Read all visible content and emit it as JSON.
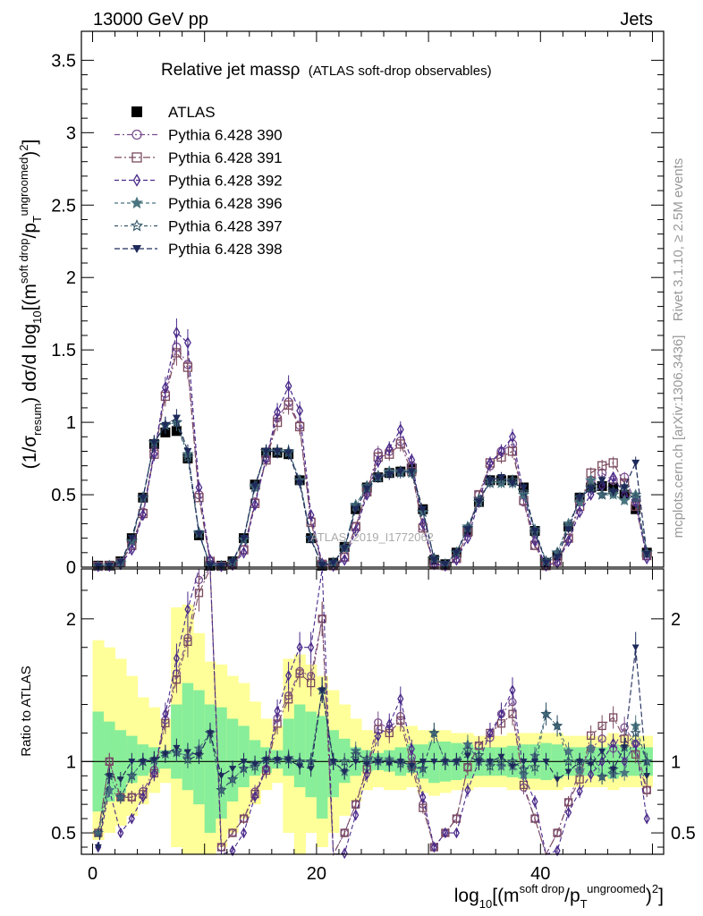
{
  "header": {
    "energy_label": "13000 GeV pp",
    "category_label": "Jets"
  },
  "side_labels": {
    "rivet": "Rivet 3.1.10, ≥ 2.5M events",
    "mcplots": "mcplots.cern.ch [arXiv:1306.3436]"
  },
  "chart_data": {
    "type": "line",
    "title": "Relative jet massρ",
    "subtitle": "(ATLAS soft-drop observables)",
    "watermark": "ATLAS_2019_I1772062",
    "xlabel": "log10[(m^soft drop / pT^ungroomed)^2]",
    "xlabel_parts": {
      "pre": "log",
      "sub1": "10",
      "mid": "[(m",
      "sup1": "soft drop",
      "mid2": "/p",
      "sub2": "T",
      "sup2": "ungroomed",
      "post": ")",
      "sup3": "2",
      "end": "]"
    },
    "ylabel_parts": {
      "pre": "(1/σ",
      "sub1": "resum",
      "mid": ") dσ/d log",
      "sub2": "10",
      "mid2": "[(m",
      "sup1": "soft drop",
      "mid3": "/p",
      "sub3": "T",
      "sup2": "ungroomed",
      "post": ")",
      "sup3": "2",
      "end": "]"
    },
    "ratio_ylabel": "Ratio to ATLAS",
    "xlim": [
      -1,
      51
    ],
    "ylim": [
      0,
      3.7
    ],
    "ratio_ylim": [
      0.35,
      2.35
    ],
    "xticks": [
      0,
      20,
      40
    ],
    "yticks": [
      0.5,
      1,
      1.5,
      2,
      2.5,
      3,
      3.5
    ],
    "ratio_yticks": [
      0.5,
      1,
      2
    ],
    "legend_position": "top-left",
    "series": [
      {
        "name": "ATLAS",
        "color": "#000000",
        "marker": "filled-square",
        "x": [
          0.5,
          1.5,
          2.5,
          3.5,
          4.5,
          5.5,
          6.5,
          7.5,
          8.5,
          9.5,
          10.5,
          11.5,
          12.5,
          13.5,
          14.5,
          15.5,
          16.5,
          17.5,
          18.5,
          19.5,
          20.5,
          21.5,
          22.5,
          23.5,
          24.5,
          25.5,
          26.5,
          27.5,
          28.5,
          29.5,
          30.5,
          31.5,
          32.5,
          33.5,
          34.5,
          35.5,
          36.5,
          37.5,
          38.5,
          39.5,
          40.5,
          41.5,
          42.5,
          43.5,
          44.5,
          45.5,
          46.5,
          47.5,
          48.5,
          49.5
        ],
        "y": [
          0.01,
          0.01,
          0.04,
          0.2,
          0.48,
          0.85,
          0.93,
          0.94,
          0.75,
          0.22,
          0.01,
          0.01,
          0.04,
          0.2,
          0.57,
          0.79,
          0.79,
          0.78,
          0.6,
          0.2,
          0.01,
          0.03,
          0.14,
          0.4,
          0.55,
          0.62,
          0.65,
          0.66,
          0.68,
          0.4,
          0.05,
          0.02,
          0.1,
          0.25,
          0.45,
          0.6,
          0.6,
          0.6,
          0.55,
          0.25,
          0.03,
          0.08,
          0.28,
          0.48,
          0.55,
          0.56,
          0.55,
          0.5,
          0.4,
          0.1
        ]
      },
      {
        "name": "Pythia 6.428 390",
        "color": "#7a4e8e",
        "marker": "open-circle",
        "x": [
          0.5,
          1.5,
          2.5,
          3.5,
          4.5,
          5.5,
          6.5,
          7.5,
          8.5,
          9.5,
          10.5,
          11.5,
          12.5,
          13.5,
          14.5,
          15.5,
          16.5,
          17.5,
          18.5,
          19.5,
          20.5,
          21.5,
          22.5,
          23.5,
          24.5,
          25.5,
          26.5,
          27.5,
          28.5,
          29.5,
          30.5,
          31.5,
          32.5,
          33.5,
          34.5,
          35.5,
          36.5,
          37.5,
          38.5,
          39.5,
          40.5,
          41.5,
          42.5,
          43.5,
          44.5,
          45.5,
          46.5,
          47.5,
          48.5,
          49.5
        ],
        "y": [
          0.005,
          0.01,
          0.03,
          0.15,
          0.38,
          0.8,
          1.2,
          1.52,
          1.4,
          0.5,
          0.04,
          0.004,
          0.02,
          0.12,
          0.45,
          0.75,
          1.03,
          1.14,
          0.98,
          0.32,
          0.02,
          0.01,
          0.07,
          0.28,
          0.53,
          0.79,
          0.8,
          0.87,
          0.7,
          0.28,
          0.02,
          0.01,
          0.06,
          0.24,
          0.5,
          0.7,
          0.8,
          0.85,
          0.45,
          0.15,
          0.01,
          0.04,
          0.2,
          0.45,
          0.6,
          0.65,
          0.6,
          0.62,
          0.45,
          0.08
        ]
      },
      {
        "name": "Pythia 6.428 391",
        "color": "#7b4a5e",
        "marker": "open-square",
        "x": [
          0.5,
          1.5,
          2.5,
          3.5,
          4.5,
          5.5,
          6.5,
          7.5,
          8.5,
          9.5,
          10.5,
          11.5,
          12.5,
          13.5,
          14.5,
          15.5,
          16.5,
          17.5,
          18.5,
          19.5,
          20.5,
          21.5,
          22.5,
          23.5,
          24.5,
          25.5,
          26.5,
          27.5,
          28.5,
          29.5,
          30.5,
          31.5,
          32.5,
          33.5,
          34.5,
          35.5,
          36.5,
          37.5,
          38.5,
          39.5,
          40.5,
          41.5,
          42.5,
          43.5,
          44.5,
          45.5,
          46.5,
          47.5,
          48.5,
          49.5
        ],
        "y": [
          0.005,
          0.01,
          0.03,
          0.15,
          0.37,
          0.78,
          1.18,
          1.48,
          1.38,
          0.48,
          0.04,
          0.004,
          0.02,
          0.12,
          0.44,
          0.74,
          1.0,
          1.12,
          0.97,
          0.31,
          0.02,
          0.01,
          0.07,
          0.28,
          0.52,
          0.76,
          0.78,
          0.85,
          0.66,
          0.27,
          0.02,
          0.01,
          0.06,
          0.24,
          0.5,
          0.72,
          0.76,
          0.8,
          0.46,
          0.15,
          0.01,
          0.04,
          0.2,
          0.42,
          0.65,
          0.7,
          0.72,
          0.58,
          0.42,
          0.08
        ]
      },
      {
        "name": "Pythia 6.428 392",
        "color": "#4a2a8a",
        "marker": "open-diamond",
        "x": [
          0.5,
          1.5,
          2.5,
          3.5,
          4.5,
          5.5,
          6.5,
          7.5,
          8.5,
          9.5,
          10.5,
          11.5,
          12.5,
          13.5,
          14.5,
          15.5,
          16.5,
          17.5,
          18.5,
          19.5,
          20.5,
          21.5,
          22.5,
          23.5,
          24.5,
          25.5,
          26.5,
          27.5,
          28.5,
          29.5,
          30.5,
          31.5,
          32.5,
          33.5,
          34.5,
          35.5,
          36.5,
          37.5,
          38.5,
          39.5,
          40.5,
          41.5,
          42.5,
          43.5,
          44.5,
          45.5,
          46.5,
          47.5,
          48.5,
          49.5
        ],
        "y": [
          0.004,
          0.008,
          0.02,
          0.12,
          0.36,
          0.78,
          1.24,
          1.62,
          1.55,
          0.55,
          0.05,
          0.003,
          0.015,
          0.1,
          0.43,
          0.75,
          1.07,
          1.25,
          1.08,
          0.36,
          0.025,
          0.008,
          0.05,
          0.25,
          0.5,
          0.73,
          0.82,
          0.95,
          0.74,
          0.3,
          0.02,
          0.01,
          0.05,
          0.2,
          0.45,
          0.72,
          0.8,
          0.9,
          0.5,
          0.18,
          0.01,
          0.03,
          0.18,
          0.38,
          0.5,
          0.56,
          0.62,
          0.5,
          0.45,
          0.06
        ]
      },
      {
        "name": "Pythia 6.428 396",
        "color": "#4a7580",
        "marker": "filled-star",
        "x": [
          0.5,
          1.5,
          2.5,
          3.5,
          4.5,
          5.5,
          6.5,
          7.5,
          8.5,
          9.5,
          10.5,
          11.5,
          12.5,
          13.5,
          14.5,
          15.5,
          16.5,
          17.5,
          18.5,
          19.5,
          20.5,
          21.5,
          22.5,
          23.5,
          24.5,
          25.5,
          26.5,
          27.5,
          28.5,
          29.5,
          30.5,
          31.5,
          32.5,
          33.5,
          34.5,
          35.5,
          36.5,
          37.5,
          38.5,
          39.5,
          40.5,
          41.5,
          42.5,
          43.5,
          44.5,
          45.5,
          46.5,
          47.5,
          48.5,
          49.5
        ],
        "y": [
          0.005,
          0.008,
          0.03,
          0.18,
          0.48,
          0.86,
          0.98,
          1.0,
          0.78,
          0.24,
          0.012,
          0.008,
          0.035,
          0.19,
          0.56,
          0.8,
          0.8,
          0.8,
          0.6,
          0.2,
          0.015,
          0.03,
          0.13,
          0.43,
          0.55,
          0.62,
          0.66,
          0.66,
          0.66,
          0.38,
          0.06,
          0.02,
          0.1,
          0.28,
          0.45,
          0.6,
          0.58,
          0.58,
          0.5,
          0.26,
          0.04,
          0.1,
          0.3,
          0.45,
          0.6,
          0.5,
          0.5,
          0.46,
          0.5,
          0.1
        ]
      },
      {
        "name": "Pythia 6.428 397",
        "color": "#35576a",
        "marker": "open-star",
        "x": [
          0.5,
          1.5,
          2.5,
          3.5,
          4.5,
          5.5,
          6.5,
          7.5,
          8.5,
          9.5,
          10.5,
          11.5,
          12.5,
          13.5,
          14.5,
          15.5,
          16.5,
          17.5,
          18.5,
          19.5,
          20.5,
          21.5,
          22.5,
          23.5,
          24.5,
          25.5,
          26.5,
          27.5,
          28.5,
          29.5,
          30.5,
          31.5,
          32.5,
          33.5,
          34.5,
          35.5,
          36.5,
          37.5,
          38.5,
          39.5,
          40.5,
          41.5,
          42.5,
          43.5,
          44.5,
          45.5,
          46.5,
          47.5,
          48.5,
          49.5
        ],
        "y": [
          0.005,
          0.009,
          0.03,
          0.18,
          0.48,
          0.86,
          0.98,
          1.0,
          0.76,
          0.23,
          0.012,
          0.008,
          0.035,
          0.19,
          0.55,
          0.8,
          0.8,
          0.79,
          0.6,
          0.2,
          0.015,
          0.03,
          0.14,
          0.42,
          0.56,
          0.63,
          0.65,
          0.65,
          0.65,
          0.38,
          0.06,
          0.02,
          0.1,
          0.27,
          0.47,
          0.58,
          0.6,
          0.6,
          0.52,
          0.24,
          0.04,
          0.1,
          0.28,
          0.48,
          0.55,
          0.5,
          0.52,
          0.55,
          0.48,
          0.1
        ]
      },
      {
        "name": "Pythia 6.428 398",
        "color": "#1e2a5a",
        "marker": "filled-triangle-down",
        "x": [
          0.5,
          1.5,
          2.5,
          3.5,
          4.5,
          5.5,
          6.5,
          7.5,
          8.5,
          9.5,
          10.5,
          11.5,
          12.5,
          13.5,
          14.5,
          15.5,
          16.5,
          17.5,
          18.5,
          19.5,
          20.5,
          21.5,
          22.5,
          23.5,
          24.5,
          25.5,
          26.5,
          27.5,
          28.5,
          29.5,
          30.5,
          31.5,
          32.5,
          33.5,
          34.5,
          35.5,
          36.5,
          37.5,
          38.5,
          39.5,
          40.5,
          41.5,
          42.5,
          43.5,
          44.5,
          45.5,
          46.5,
          47.5,
          48.5,
          49.5
        ],
        "y": [
          0.004,
          0.009,
          0.035,
          0.2,
          0.48,
          0.86,
          0.98,
          1.03,
          0.8,
          0.23,
          0.012,
          0.009,
          0.038,
          0.2,
          0.56,
          0.8,
          0.8,
          0.79,
          0.58,
          0.19,
          0.015,
          0.03,
          0.13,
          0.4,
          0.54,
          0.62,
          0.64,
          0.66,
          0.66,
          0.4,
          0.05,
          0.02,
          0.1,
          0.26,
          0.45,
          0.6,
          0.62,
          0.58,
          0.55,
          0.25,
          0.03,
          0.07,
          0.26,
          0.48,
          0.54,
          0.6,
          0.52,
          0.55,
          0.72,
          0.09
        ]
      }
    ],
    "uncertainty_bands": {
      "x_edges": [
        0,
        1,
        2,
        3,
        4,
        5,
        6,
        7,
        8,
        9,
        10,
        11,
        12,
        13,
        14,
        15,
        16,
        17,
        18,
        19,
        20,
        21,
        22,
        23,
        24,
        25,
        26,
        27,
        28,
        29,
        30,
        31,
        32,
        33,
        34,
        35,
        36,
        37,
        38,
        39,
        40,
        41,
        42,
        43,
        44,
        45,
        46,
        47,
        48,
        49,
        50
      ],
      "inner_lo": [
        0.65,
        0.72,
        0.78,
        0.85,
        0.9,
        0.92,
        0.95,
        0.88,
        0.8,
        0.7,
        0.5,
        0.6,
        0.72,
        0.82,
        0.9,
        0.92,
        0.95,
        0.9,
        0.82,
        0.75,
        0.6,
        0.75,
        0.85,
        0.9,
        0.93,
        0.94,
        0.93,
        0.9,
        0.92,
        0.88,
        0.85,
        0.86,
        0.87,
        0.88,
        0.9,
        0.9,
        0.9,
        0.89,
        0.88,
        0.88,
        0.87,
        0.88,
        0.9,
        0.9,
        0.9,
        0.9,
        0.88,
        0.9,
        0.9,
        0.9
      ],
      "inner_hi": [
        1.35,
        1.28,
        1.22,
        1.18,
        1.12,
        1.1,
        1.08,
        1.4,
        1.55,
        1.5,
        1.4,
        1.38,
        1.3,
        1.25,
        1.15,
        1.1,
        1.08,
        1.3,
        1.4,
        1.35,
        1.32,
        1.22,
        1.16,
        1.1,
        1.08,
        1.06,
        1.08,
        1.1,
        1.12,
        1.12,
        1.14,
        1.14,
        1.13,
        1.12,
        1.1,
        1.1,
        1.1,
        1.11,
        1.12,
        1.12,
        1.13,
        1.12,
        1.1,
        1.1,
        1.1,
        1.1,
        1.12,
        1.1,
        1.1,
        1.1
      ],
      "outer_lo": [
        0.45,
        0.5,
        0.55,
        0.62,
        0.7,
        0.78,
        0.85,
        0.4,
        0.35,
        0.35,
        0.35,
        0.4,
        0.5,
        0.6,
        0.7,
        0.8,
        0.85,
        0.5,
        0.35,
        0.5,
        0.4,
        0.5,
        0.62,
        0.72,
        0.8,
        0.82,
        0.8,
        0.8,
        0.82,
        0.78,
        0.76,
        0.78,
        0.8,
        0.8,
        0.82,
        0.82,
        0.82,
        0.8,
        0.8,
        0.8,
        0.8,
        0.8,
        0.82,
        0.82,
        0.82,
        0.82,
        0.8,
        0.82,
        0.82,
        0.82
      ],
      "outer_hi": [
        1.85,
        1.8,
        1.72,
        1.6,
        1.45,
        1.38,
        1.3,
        2.08,
        2.1,
        1.9,
        1.7,
        1.68,
        1.6,
        1.55,
        1.42,
        1.3,
        1.25,
        1.72,
        1.75,
        1.68,
        1.6,
        1.5,
        1.4,
        1.3,
        1.22,
        1.2,
        1.22,
        1.25,
        1.25,
        1.22,
        1.22,
        1.22,
        1.2,
        1.2,
        1.18,
        1.18,
        1.18,
        1.2,
        1.2,
        1.2,
        1.2,
        1.2,
        1.18,
        1.18,
        1.18,
        1.18,
        1.2,
        1.18,
        1.18,
        1.18
      ]
    }
  }
}
